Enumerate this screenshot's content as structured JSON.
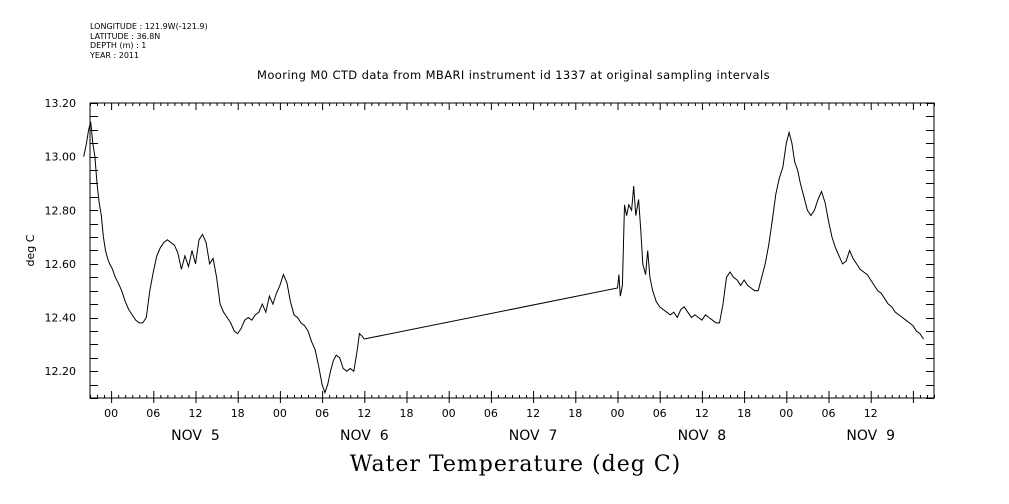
{
  "header": {
    "longitude": "LONGITUDE : 121.9W(-121.9)",
    "latitude": "LATITUDE : 36.8N",
    "depth": "DEPTH (m) : 1",
    "year": "YEAR : 2011"
  },
  "chart_data": {
    "type": "line",
    "title": "Mooring M0 CTD data from MBARI instrument id 1337 at original sampling intervals",
    "bottom_title": "Water Temperature (deg C)",
    "ylabel": "deg C",
    "xlabel": "",
    "x_unit": "hours from 2011-11-05 00:00",
    "xlim": [
      -3,
      117
    ],
    "ylim": [
      12.1,
      13.2
    ],
    "y_ticks": [
      "12.20",
      "12.40",
      "12.60",
      "12.80",
      "13.00",
      "13.20"
    ],
    "x_ticks": [
      {
        "x": 0,
        "label": "00"
      },
      {
        "x": 6,
        "label": "06"
      },
      {
        "x": 12,
        "label": "12"
      },
      {
        "x": 18,
        "label": "18"
      },
      {
        "x": 24,
        "label": "00"
      },
      {
        "x": 30,
        "label": "06"
      },
      {
        "x": 36,
        "label": "12"
      },
      {
        "x": 42,
        "label": "18"
      },
      {
        "x": 48,
        "label": "00"
      },
      {
        "x": 54,
        "label": "06"
      },
      {
        "x": 60,
        "label": "12"
      },
      {
        "x": 66,
        "label": "18"
      },
      {
        "x": 72,
        "label": "00"
      },
      {
        "x": 78,
        "label": "06"
      },
      {
        "x": 84,
        "label": "12"
      },
      {
        "x": 90,
        "label": "18"
      },
      {
        "x": 96,
        "label": "00"
      },
      {
        "x": 102,
        "label": "06"
      },
      {
        "x": 108,
        "label": "12"
      }
    ],
    "day_labels": [
      {
        "x": 12,
        "label": "NOV  5"
      },
      {
        "x": 36,
        "label": "NOV  6"
      },
      {
        "x": 60,
        "label": "NOV  7"
      },
      {
        "x": 84,
        "label": "NOV  8"
      },
      {
        "x": 108,
        "label": "NOV  9"
      }
    ],
    "series": [
      {
        "name": "",
        "color": "#000000",
        "points": [
          [
            -3.9,
            13.0
          ],
          [
            -3.5,
            13.05
          ],
          [
            -3.2,
            13.1
          ],
          [
            -2.9,
            13.13
          ],
          [
            -2.6,
            13.05
          ],
          [
            -2.3,
            13.0
          ],
          [
            -2.0,
            12.9
          ],
          [
            -1.7,
            12.83
          ],
          [
            -1.4,
            12.78
          ],
          [
            -1.1,
            12.7
          ],
          [
            -0.8,
            12.65
          ],
          [
            -0.5,
            12.62
          ],
          [
            -0.2,
            12.6
          ],
          [
            0.2,
            12.58
          ],
          [
            0.6,
            12.55
          ],
          [
            1.0,
            12.53
          ],
          [
            1.5,
            12.5
          ],
          [
            2.0,
            12.46
          ],
          [
            2.5,
            12.43
          ],
          [
            3.0,
            12.41
          ],
          [
            3.5,
            12.39
          ],
          [
            4.0,
            12.38
          ],
          [
            4.5,
            12.38
          ],
          [
            5.0,
            12.4
          ],
          [
            5.5,
            12.5
          ],
          [
            6.0,
            12.57
          ],
          [
            6.5,
            12.63
          ],
          [
            7.0,
            12.66
          ],
          [
            7.5,
            12.68
          ],
          [
            8.0,
            12.69
          ],
          [
            8.5,
            12.68
          ],
          [
            9.0,
            12.67
          ],
          [
            9.5,
            12.64
          ],
          [
            10.0,
            12.58
          ],
          [
            10.5,
            12.63
          ],
          [
            11.0,
            12.59
          ],
          [
            11.5,
            12.65
          ],
          [
            12.0,
            12.6
          ],
          [
            12.5,
            12.69
          ],
          [
            13.0,
            12.71
          ],
          [
            13.5,
            12.68
          ],
          [
            14.0,
            12.6
          ],
          [
            14.5,
            12.62
          ],
          [
            15.0,
            12.55
          ],
          [
            15.5,
            12.45
          ],
          [
            16.0,
            12.42
          ],
          [
            16.5,
            12.4
          ],
          [
            17.0,
            12.38
          ],
          [
            17.5,
            12.35
          ],
          [
            18.0,
            12.34
          ],
          [
            18.5,
            12.36
          ],
          [
            19.0,
            12.39
          ],
          [
            19.5,
            12.4
          ],
          [
            20.0,
            12.39
          ],
          [
            20.5,
            12.41
          ],
          [
            21.0,
            12.42
          ],
          [
            21.5,
            12.45
          ],
          [
            22.0,
            12.42
          ],
          [
            22.5,
            12.48
          ],
          [
            23.0,
            12.45
          ],
          [
            23.5,
            12.49
          ],
          [
            24.0,
            12.52
          ],
          [
            24.5,
            12.56
          ],
          [
            25.0,
            12.53
          ],
          [
            25.5,
            12.46
          ],
          [
            26.0,
            12.41
          ],
          [
            26.5,
            12.4
          ],
          [
            27.0,
            12.38
          ],
          [
            27.5,
            12.37
          ],
          [
            28.0,
            12.35
          ],
          [
            28.5,
            12.31
          ],
          [
            29.0,
            12.28
          ],
          [
            29.5,
            12.22
          ],
          [
            30.0,
            12.15
          ],
          [
            30.4,
            12.12
          ],
          [
            30.8,
            12.15
          ],
          [
            31.2,
            12.2
          ],
          [
            31.6,
            12.24
          ],
          [
            32.0,
            12.26
          ],
          [
            32.5,
            12.25
          ],
          [
            33.0,
            12.21
          ],
          [
            33.5,
            12.2
          ],
          [
            34.0,
            12.21
          ],
          [
            34.5,
            12.2
          ],
          [
            35.0,
            12.28
          ],
          [
            35.3,
            12.34
          ],
          [
            35.7,
            12.33
          ],
          [
            36.0,
            12.32
          ],
          [
            72.0,
            12.51
          ],
          [
            72.2,
            12.56
          ],
          [
            72.4,
            12.48
          ],
          [
            72.7,
            12.52
          ],
          [
            73.0,
            12.82
          ],
          [
            73.3,
            12.78
          ],
          [
            73.6,
            12.82
          ],
          [
            74.0,
            12.8
          ],
          [
            74.3,
            12.89
          ],
          [
            74.6,
            12.78
          ],
          [
            75.0,
            12.84
          ],
          [
            75.3,
            12.73
          ],
          [
            75.6,
            12.6
          ],
          [
            76.0,
            12.56
          ],
          [
            76.3,
            12.65
          ],
          [
            76.6,
            12.55
          ],
          [
            77.0,
            12.5
          ],
          [
            77.5,
            12.46
          ],
          [
            78.0,
            12.44
          ],
          [
            78.5,
            12.43
          ],
          [
            79.0,
            12.42
          ],
          [
            79.5,
            12.41
          ],
          [
            80.0,
            12.42
          ],
          [
            80.5,
            12.4
          ],
          [
            81.0,
            12.43
          ],
          [
            81.5,
            12.44
          ],
          [
            82.0,
            12.42
          ],
          [
            82.5,
            12.4
          ],
          [
            83.0,
            12.41
          ],
          [
            83.5,
            12.4
          ],
          [
            84.0,
            12.39
          ],
          [
            84.5,
            12.41
          ],
          [
            85.0,
            12.4
          ],
          [
            85.5,
            12.39
          ],
          [
            86.0,
            12.38
          ],
          [
            86.5,
            12.38
          ],
          [
            87.0,
            12.45
          ],
          [
            87.5,
            12.55
          ],
          [
            88.0,
            12.57
          ],
          [
            88.5,
            12.55
          ],
          [
            89.0,
            12.54
          ],
          [
            89.5,
            12.52
          ],
          [
            90.0,
            12.54
          ],
          [
            90.5,
            12.52
          ],
          [
            91.0,
            12.51
          ],
          [
            91.5,
            12.5
          ],
          [
            92.0,
            12.5
          ],
          [
            92.5,
            12.55
          ],
          [
            93.0,
            12.6
          ],
          [
            93.5,
            12.67
          ],
          [
            94.0,
            12.76
          ],
          [
            94.5,
            12.86
          ],
          [
            95.0,
            12.92
          ],
          [
            95.5,
            12.96
          ],
          [
            96.0,
            13.05
          ],
          [
            96.4,
            13.09
          ],
          [
            96.8,
            13.05
          ],
          [
            97.2,
            12.98
          ],
          [
            97.6,
            12.95
          ],
          [
            98.0,
            12.9
          ],
          [
            98.5,
            12.85
          ],
          [
            99.0,
            12.8
          ],
          [
            99.5,
            12.78
          ],
          [
            100.0,
            12.8
          ],
          [
            100.5,
            12.84
          ],
          [
            101.0,
            12.87
          ],
          [
            101.5,
            12.83
          ],
          [
            102.0,
            12.76
          ],
          [
            102.5,
            12.7
          ],
          [
            103.0,
            12.66
          ],
          [
            103.5,
            12.63
          ],
          [
            104.0,
            12.6
          ],
          [
            104.5,
            12.61
          ],
          [
            105.0,
            12.65
          ],
          [
            105.5,
            12.62
          ],
          [
            106.0,
            12.6
          ],
          [
            106.5,
            12.58
          ],
          [
            107.0,
            12.57
          ],
          [
            107.5,
            12.56
          ],
          [
            108.0,
            12.54
          ],
          [
            108.5,
            12.52
          ],
          [
            109.0,
            12.5
          ],
          [
            109.5,
            12.49
          ],
          [
            110.0,
            12.47
          ],
          [
            110.5,
            12.45
          ],
          [
            111.0,
            12.44
          ],
          [
            111.5,
            12.42
          ],
          [
            112.0,
            12.41
          ],
          [
            112.5,
            12.4
          ],
          [
            113.0,
            12.39
          ],
          [
            113.5,
            12.38
          ],
          [
            114.0,
            12.37
          ],
          [
            114.5,
            12.35
          ],
          [
            115.0,
            12.34
          ],
          [
            115.5,
            12.32
          ]
        ]
      }
    ]
  }
}
